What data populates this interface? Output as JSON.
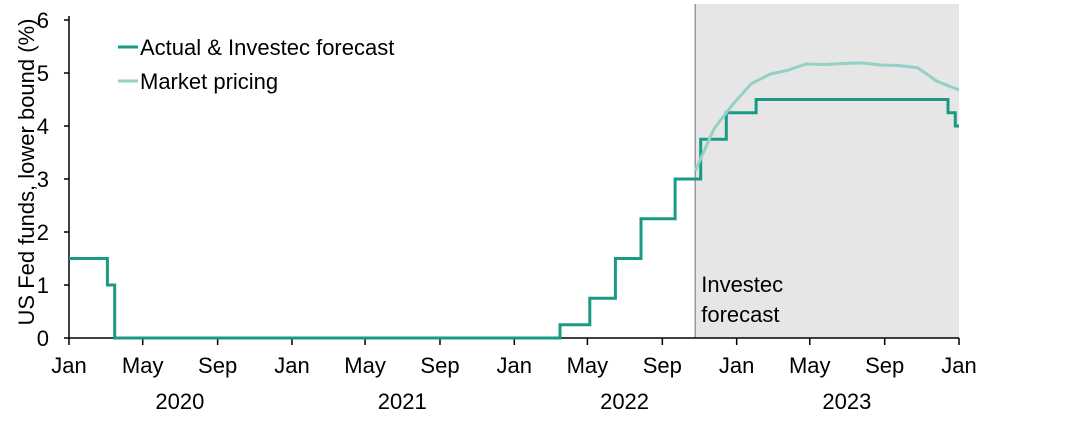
{
  "chart_data": {
    "type": "line",
    "ylabel": "US Fed funds, lower bound (%)",
    "ylim": [
      0,
      6
    ],
    "yticks": [
      0,
      1,
      2,
      3,
      4,
      5,
      6
    ],
    "xlim": [
      "2020-01-01",
      "2024-01-01"
    ],
    "x_ticks": [
      {
        "date": "2020-01-01",
        "label": "Jan"
      },
      {
        "date": "2020-05-01",
        "label": "May"
      },
      {
        "date": "2020-09-01",
        "label": "Sep"
      },
      {
        "date": "2021-01-01",
        "label": "Jan"
      },
      {
        "date": "2021-05-01",
        "label": "May"
      },
      {
        "date": "2021-09-01",
        "label": "Sep"
      },
      {
        "date": "2022-01-01",
        "label": "Jan"
      },
      {
        "date": "2022-05-01",
        "label": "May"
      },
      {
        "date": "2022-09-01",
        "label": "Sep"
      },
      {
        "date": "2023-01-01",
        "label": "Jan"
      },
      {
        "date": "2023-05-01",
        "label": "May"
      },
      {
        "date": "2023-09-01",
        "label": "Sep"
      },
      {
        "date": "2024-01-01",
        "label": "Jan"
      }
    ],
    "year_labels": [
      {
        "date": "2020-07-01",
        "label": "2020"
      },
      {
        "date": "2021-07-01",
        "label": "2021"
      },
      {
        "date": "2022-07-01",
        "label": "2022"
      },
      {
        "date": "2023-07-01",
        "label": "2023"
      }
    ],
    "shaded_region": {
      "start": "2022-10-25",
      "end": "2024-01-01",
      "label_lines": [
        "Investec",
        "forecast"
      ]
    },
    "legend_position": "top-left",
    "series": [
      {
        "name": "Actual & Investec forecast",
        "color": "#1a9985",
        "step": true,
        "points": [
          [
            "2020-01-01",
            1.5
          ],
          [
            "2020-03-04",
            1.0
          ],
          [
            "2020-03-16",
            0.0
          ],
          [
            "2022-03-17",
            0.25
          ],
          [
            "2022-05-05",
            0.75
          ],
          [
            "2022-06-16",
            1.5
          ],
          [
            "2022-07-28",
            2.25
          ],
          [
            "2022-09-22",
            3.0
          ],
          [
            "2022-11-03",
            3.75
          ],
          [
            "2022-12-15",
            4.25
          ],
          [
            "2023-02-02",
            4.5
          ],
          [
            "2023-12-14",
            4.25
          ],
          [
            "2023-12-26",
            4.0
          ],
          [
            "2024-01-01",
            4.0
          ]
        ]
      },
      {
        "name": "Market pricing",
        "color": "#92d0c8",
        "step": false,
        "points": [
          [
            "2022-10-25",
            3.15
          ],
          [
            "2022-11-25",
            3.95
          ],
          [
            "2022-12-25",
            4.4
          ],
          [
            "2023-01-25",
            4.8
          ],
          [
            "2023-02-25",
            4.98
          ],
          [
            "2023-03-25",
            5.05
          ],
          [
            "2023-04-25",
            5.17
          ],
          [
            "2023-05-25",
            5.16
          ],
          [
            "2023-06-25",
            5.18
          ],
          [
            "2023-07-25",
            5.19
          ],
          [
            "2023-08-25",
            5.15
          ],
          [
            "2023-09-25",
            5.14
          ],
          [
            "2023-10-25",
            5.1
          ],
          [
            "2023-11-25",
            4.85
          ],
          [
            "2024-01-01",
            4.68
          ]
        ]
      }
    ]
  }
}
